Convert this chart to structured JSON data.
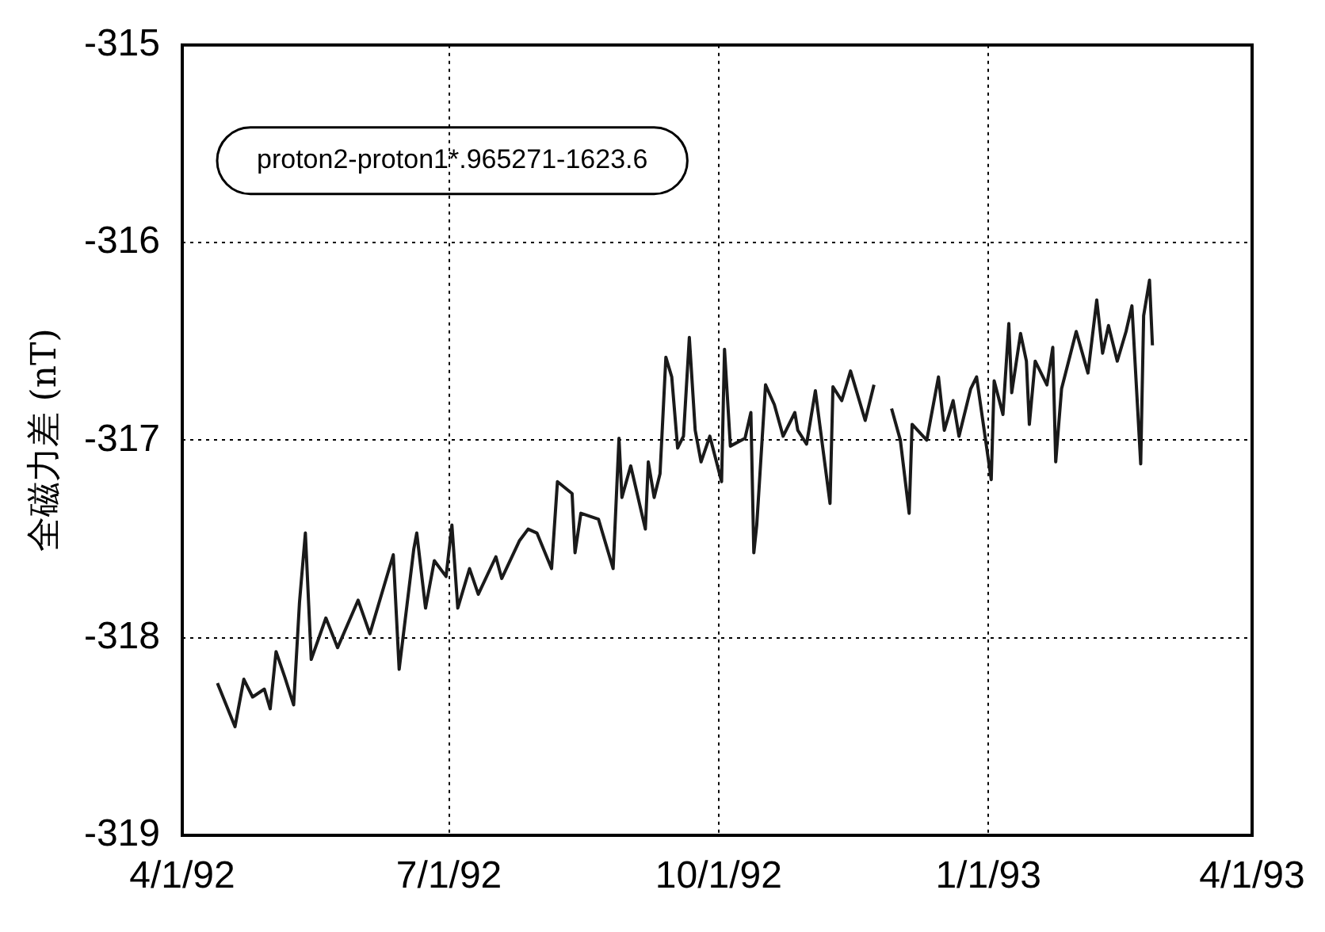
{
  "chart_data": {
    "type": "line",
    "ylabel": "全磁力差 (nT)",
    "annotations": [
      "proton2-proton1*.965271-1623.6"
    ],
    "x": [
      "1992-04-13",
      "1992-04-19",
      "1992-04-22",
      "1992-04-25",
      "1992-04-29",
      "1992-05-01",
      "1992-05-03",
      "1992-05-06",
      "1992-05-09",
      "1992-05-11",
      "1992-05-13",
      "1992-05-15",
      "1992-05-20",
      "1992-05-24",
      "1992-05-31",
      "1992-06-04",
      "1992-06-12",
      "1992-06-14",
      "1992-06-19",
      "1992-06-20",
      "1992-06-23",
      "1992-06-26",
      "1992-06-30",
      "1992-07-02",
      "1992-07-04",
      "1992-07-08",
      "1992-07-11",
      "1992-07-17",
      "1992-07-19",
      "1992-07-25",
      "1992-07-28",
      "1992-07-31",
      "1992-08-05",
      "1992-08-07",
      "1992-08-12",
      "1992-08-13",
      "1992-08-15",
      "1992-08-21",
      "1992-08-26",
      "1992-08-28",
      "1992-08-29",
      "1992-09-01",
      "1992-09-06",
      "1992-09-07",
      "1992-09-09",
      "1992-09-11",
      "1992-09-13",
      "1992-09-15",
      "1992-09-17",
      "1992-09-19",
      "1992-09-21",
      "1992-09-23",
      "1992-09-25",
      "1992-09-28",
      "1992-10-02",
      "1992-10-03",
      "1992-10-05",
      "1992-10-10",
      "1992-10-12",
      "1992-10-13",
      "1992-10-14",
      "1992-10-17",
      "1992-10-20",
      "1992-10-23",
      "1992-10-27",
      "1992-10-28",
      "1992-10-31",
      "1992-11-03",
      "1992-11-08",
      "1992-11-09",
      "1992-11-12",
      "1992-11-15",
      "1992-11-20",
      "1992-11-23",
      "1992-11-26",
      "1992-11-29",
      "1992-12-02",
      "1992-12-05",
      "1992-12-06",
      "1992-12-11",
      "1992-12-15",
      "1992-12-17",
      "1992-12-20",
      "1992-12-22",
      "1992-12-26",
      "1992-12-28",
      "1993-01-02",
      "1993-01-03",
      "1993-01-06",
      "1993-01-08",
      "1993-01-09",
      "1993-01-12",
      "1993-01-14",
      "1993-01-15",
      "1993-01-17",
      "1993-01-21",
      "1993-01-23",
      "1993-01-24",
      "1993-01-26",
      "1993-01-31",
      "1993-02-04",
      "1993-02-07",
      "1993-02-09",
      "1993-02-11",
      "1993-02-14",
      "1993-02-17",
      "1993-02-19",
      "1993-02-22",
      "1993-02-23",
      "1993-02-25",
      "1993-02-26"
    ],
    "series": [
      {
        "color": "#1a1a1a",
        "values": [
          -318.23,
          -318.45,
          -318.21,
          -318.3,
          -318.26,
          -318.36,
          -318.07,
          -318.2,
          -318.34,
          -317.82,
          -317.47,
          -318.11,
          -317.9,
          -318.05,
          -317.81,
          -317.98,
          -317.58,
          -318.16,
          -317.55,
          -317.47,
          -317.85,
          -317.61,
          -317.69,
          -317.43,
          -317.85,
          -317.65,
          -317.78,
          -317.59,
          -317.7,
          -317.51,
          -317.45,
          -317.47,
          -317.65,
          -317.21,
          -317.27,
          -317.57,
          -317.37,
          -317.4,
          -317.65,
          -316.99,
          -317.29,
          -317.13,
          -317.45,
          -317.11,
          -317.29,
          -317.17,
          -316.58,
          -316.68,
          -317.04,
          -316.98,
          -316.48,
          -316.95,
          -317.11,
          -316.98,
          -317.21,
          -316.54,
          -317.03,
          -316.99,
          -316.86,
          -317.57,
          -317.43,
          -316.72,
          -316.82,
          -316.98,
          -316.86,
          -316.95,
          -317.02,
          -316.75,
          -317.32,
          -316.73,
          -316.8,
          -316.65,
          -316.9,
          -316.72,
          null,
          -316.84,
          -317.0,
          -317.37,
          -316.92,
          -317.0,
          -316.68,
          -316.95,
          -316.8,
          -316.98,
          -316.74,
          -316.68,
          -317.2,
          -316.7,
          -316.87,
          -316.41,
          -316.76,
          -316.46,
          -316.6,
          -316.92,
          -316.6,
          -316.72,
          -316.53,
          -317.11,
          -316.74,
          -316.45,
          -316.66,
          -316.29,
          -316.56,
          -316.42,
          -316.6,
          -316.45,
          -316.32,
          -317.12,
          -316.37,
          -316.19,
          -316.52
        ]
      }
    ],
    "xlim": [
      "1992-04-01",
      "1993-04-01"
    ],
    "xticks": [
      {
        "value": "1992-04-01",
        "label": "4/1/92"
      },
      {
        "value": "1992-07-01",
        "label": "7/1/92"
      },
      {
        "value": "1992-10-01",
        "label": "10/1/92"
      },
      {
        "value": "1993-01-01",
        "label": "1/1/93"
      },
      {
        "value": "1993-04-01",
        "label": "4/1/93"
      }
    ],
    "ylim": [
      -319,
      -315
    ],
    "yticks": [
      -319,
      -318,
      -317,
      -316,
      -315
    ],
    "grid": true,
    "legend": false,
    "marker": "none",
    "line_style": "solid"
  }
}
